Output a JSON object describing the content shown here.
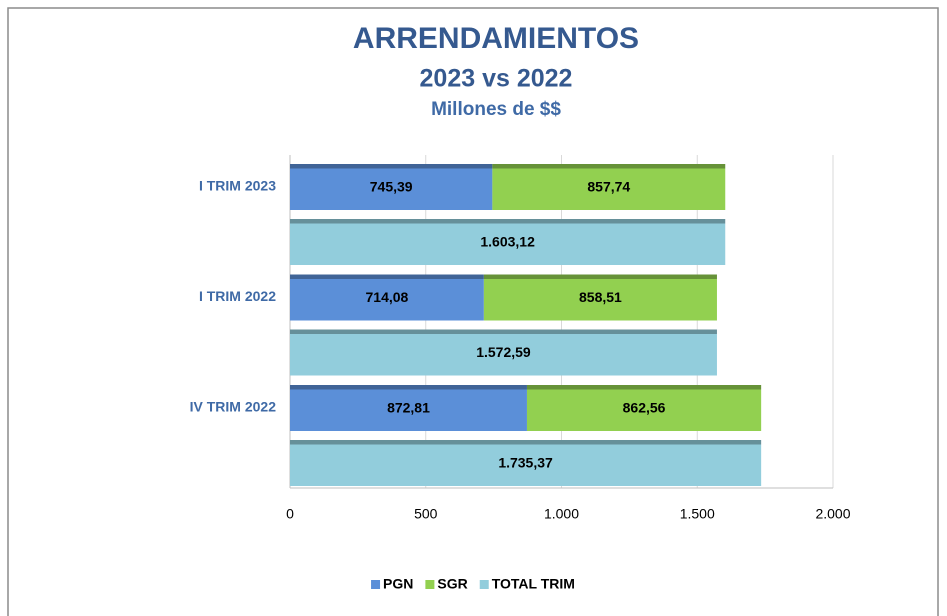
{
  "chart_data": {
    "type": "bar",
    "orientation": "horizontal",
    "title": "ARRENDAMIENTOS",
    "subtitle": "2023 vs 2022",
    "unit_label": "Millones de $$",
    "categories": [
      "I TRIM 2023",
      "I TRIM 2022",
      "IV TRIM 2022"
    ],
    "series": [
      {
        "name": "PGN",
        "color": "#5b8fd8",
        "values": [
          745.39,
          714.08,
          872.81
        ],
        "value_labels": [
          "745,39",
          "714,08",
          "872,81"
        ]
      },
      {
        "name": "SGR",
        "color": "#92d050",
        "values": [
          857.74,
          858.51,
          862.56
        ],
        "value_labels": [
          "857,74",
          "858,51",
          "862,56"
        ]
      },
      {
        "name": "TOTAL TRIM",
        "color": "#92cddc",
        "values": [
          1603.12,
          1572.59,
          1735.37
        ],
        "value_labels": [
          "1.603,12",
          "1.572,59",
          "1.735,37"
        ]
      }
    ],
    "xlim": [
      0,
      2000
    ],
    "xticks": [
      0,
      500,
      {
        "value": 1000,
        "label": "1.000"
      },
      {
        "value": 1500,
        "label": "1.500"
      },
      {
        "value": 2000,
        "label": "2.000"
      }
    ],
    "grid": true,
    "legend": "bottom"
  }
}
